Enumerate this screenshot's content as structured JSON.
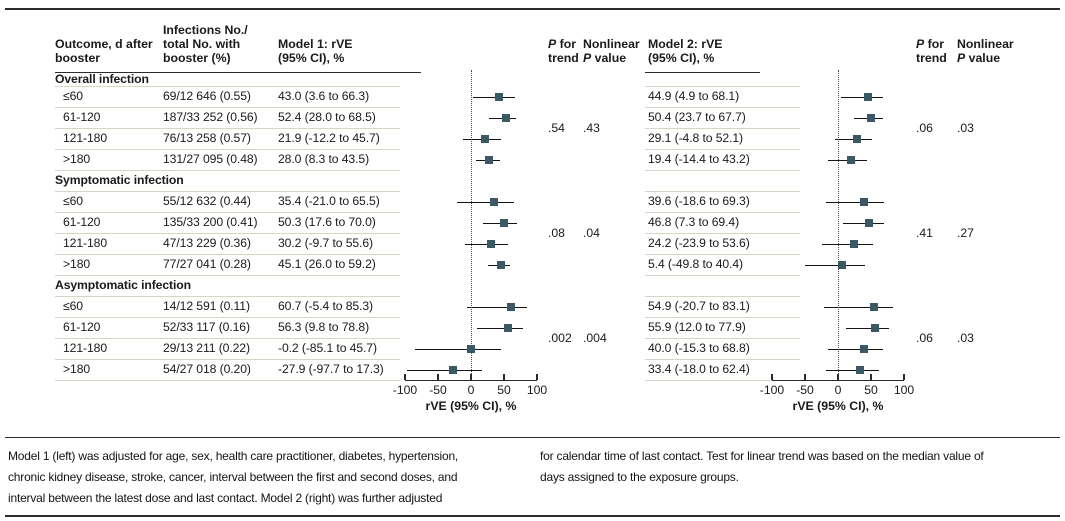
{
  "labels": {
    "P": "P",
    "for": "for",
    "trend": "trend",
    "nonlinear": "Nonlinear",
    "value": "value"
  },
  "headers": {
    "outcome": "Outcome, d after\nbooster",
    "infections": "Infections No./\ntotal No. with\nbooster (%)",
    "model1": "Model 1: rVE\n(95% CI), %",
    "model2": "Model 2: rVE\n(95% CI), %"
  },
  "colors": {
    "marker": "#3a5964",
    "ci_line": "#141414",
    "row_line": "#d9d4c7",
    "rule": "#2b2b2b"
  },
  "chart_data": {
    "type": "scatter",
    "subtype": "forest-plot",
    "xlabel": "rVE (95% CI), %",
    "xlim": [
      -100,
      100
    ],
    "xticks": [
      -100,
      -50,
      0,
      50,
      100
    ],
    "reference_x": 0,
    "sections": [
      {
        "label": "Overall infection",
        "p_for_trend": {
          "model1": ".54",
          "model2": ".06"
        },
        "nonlinear_p": {
          "model1": ".43",
          "model2": ".03"
        },
        "rows": [
          {
            "outcome": "≤60",
            "infections": "69/12 646 (0.55)",
            "model1": {
              "text": "43.0 (3.6 to 66.3)",
              "est": 43.0,
              "lo": 3.6,
              "hi": 66.3
            },
            "model2": {
              "text": "44.9 (4.9 to 68.1)",
              "est": 44.9,
              "lo": 4.9,
              "hi": 68.1
            }
          },
          {
            "outcome": "61-120",
            "infections": "187/33 252 (0.56)",
            "model1": {
              "text": "52.4 (28.0 to 68.5)",
              "est": 52.4,
              "lo": 28.0,
              "hi": 68.5
            },
            "model2": {
              "text": "50.4 (23.7 to 67.7)",
              "est": 50.4,
              "lo": 23.7,
              "hi": 67.7
            }
          },
          {
            "outcome": "121-180",
            "infections": "76/13 258 (0.57)",
            "model1": {
              "text": "21.9 (-12.2 to 45.7)",
              "est": 21.9,
              "lo": -12.2,
              "hi": 45.7
            },
            "model2": {
              "text": "29.1 (-4.8 to 52.1)",
              "est": 29.1,
              "lo": -4.8,
              "hi": 52.1
            }
          },
          {
            "outcome": ">180",
            "infections": "131/27 095 (0.48)",
            "model1": {
              "text": "28.0 (8.3 to 43.5)",
              "est": 28.0,
              "lo": 8.3,
              "hi": 43.5
            },
            "model2": {
              "text": "19.4 (-14.4 to 43.2)",
              "est": 19.4,
              "lo": -14.4,
              "hi": 43.2
            }
          }
        ]
      },
      {
        "label": "Symptomatic infection",
        "p_for_trend": {
          "model1": ".08",
          "model2": ".41"
        },
        "nonlinear_p": {
          "model1": ".04",
          "model2": ".27"
        },
        "rows": [
          {
            "outcome": "≤60",
            "infections": "55/12 632 (0.44)",
            "model1": {
              "text": "35.4 (-21.0 to 65.5)",
              "est": 35.4,
              "lo": -21.0,
              "hi": 65.5
            },
            "model2": {
              "text": "39.6 (-18.6 to 69.3)",
              "est": 39.6,
              "lo": -18.6,
              "hi": 69.3
            }
          },
          {
            "outcome": "61-120",
            "infections": "135/33 200 (0.41)",
            "model1": {
              "text": "50.3 (17.6 to 70.0)",
              "est": 50.3,
              "lo": 17.6,
              "hi": 70.0
            },
            "model2": {
              "text": "46.8 (7.3 to 69.4)",
              "est": 46.8,
              "lo": 7.3,
              "hi": 69.4
            }
          },
          {
            "outcome": "121-180",
            "infections": "47/13 229 (0.36)",
            "model1": {
              "text": "30.2 (-9.7 to 55.6)",
              "est": 30.2,
              "lo": -9.7,
              "hi": 55.6
            },
            "model2": {
              "text": "24.2 (-23.9 to 53.6)",
              "est": 24.2,
              "lo": -23.9,
              "hi": 53.6
            }
          },
          {
            "outcome": ">180",
            "infections": "77/27 041 (0.28)",
            "model1": {
              "text": "45.1 (26.0 to 59.2)",
              "est": 45.1,
              "lo": 26.0,
              "hi": 59.2
            },
            "model2": {
              "text": "5.4 (-49.8 to 40.4)",
              "est": 5.4,
              "lo": -49.8,
              "hi": 40.4
            }
          }
        ]
      },
      {
        "label": "Asymptomatic infection",
        "p_for_trend": {
          "model1": ".002",
          "model2": ".06"
        },
        "nonlinear_p": {
          "model1": ".004",
          "model2": ".03"
        },
        "rows": [
          {
            "outcome": "≤60",
            "infections": "14/12 591 (0.11)",
            "model1": {
              "text": "60.7 (-5.4 to 85.3)",
              "est": 60.7,
              "lo": -5.4,
              "hi": 85.3
            },
            "model2": {
              "text": "54.9 (-20.7 to 83.1)",
              "est": 54.9,
              "lo": -20.7,
              "hi": 83.1
            }
          },
          {
            "outcome": "61-120",
            "infections": "52/33 117 (0.16)",
            "model1": {
              "text": "56.3 (9.8 to 78.8)",
              "est": 56.3,
              "lo": 9.8,
              "hi": 78.8
            },
            "model2": {
              "text": "55.9 (12.0 to 77.9)",
              "est": 55.9,
              "lo": 12.0,
              "hi": 77.9
            }
          },
          {
            "outcome": "121-180",
            "infections": "29/13 211 (0.22)",
            "model1": {
              "text": "-0.2 (-85.1 to 45.7)",
              "est": -0.2,
              "lo": -85.1,
              "hi": 45.7
            },
            "model2": {
              "text": "40.0 (-15.3 to 68.8)",
              "est": 40.0,
              "lo": -15.3,
              "hi": 68.8
            }
          },
          {
            "outcome": ">180",
            "infections": "54/27 018 (0.20)",
            "model1": {
              "text": "-27.9 (-97.7 to 17.3)",
              "est": -27.9,
              "lo": -97.7,
              "hi": 17.3
            },
            "model2": {
              "text": "33.4 (-18.0 to 62.4)",
              "est": 33.4,
              "lo": -18.0,
              "hi": 62.4
            }
          }
        ]
      }
    ]
  },
  "footnote": {
    "left": "Model 1 (left) was adjusted for age, sex, health care practitioner, diabetes, hypertension,\nchronic kidney disease, stroke, cancer, interval between the first and second doses, and\ninterval between the latest dose and last contact. Model 2 (right) was further adjusted",
    "right": "for calendar time of last contact. Test for linear trend was based on the median value of\ndays assigned to the exposure groups."
  }
}
